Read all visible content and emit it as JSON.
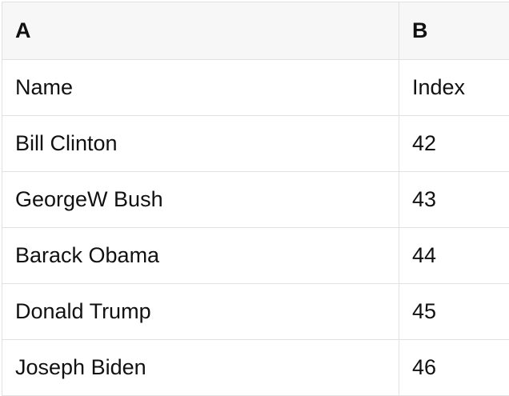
{
  "colors": {
    "header_bg": "#f7f7f7",
    "border": "#e1e1e1",
    "text": "#111111",
    "background": "#ffffff"
  },
  "table": {
    "columns": [
      {
        "label": "A"
      },
      {
        "label": "B"
      }
    ],
    "rows": [
      [
        "Name",
        "Index"
      ],
      [
        "Bill Clinton",
        "42"
      ],
      [
        "GeorgeW Bush",
        "43"
      ],
      [
        "Barack Obama",
        "44"
      ],
      [
        "Donald Trump",
        "45"
      ],
      [
        "Joseph Biden",
        "46"
      ]
    ]
  }
}
